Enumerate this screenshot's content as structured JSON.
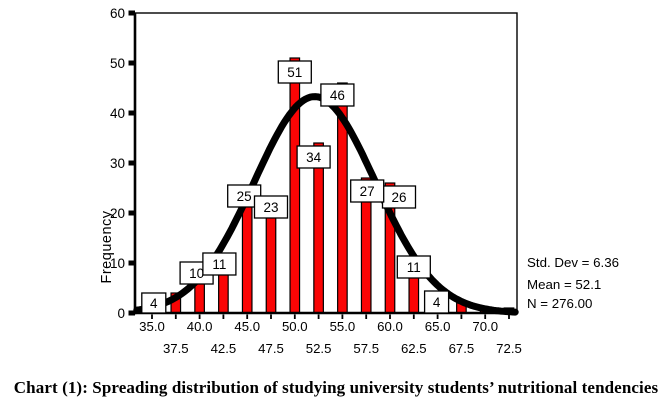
{
  "page": {
    "background": "#ffffff"
  },
  "chart_data": {
    "type": "bar",
    "subtype": "histogram-with-normal-curve",
    "title": "",
    "xlabel": "",
    "ylabel": "Frequency",
    "ylim": [
      0,
      60
    ],
    "y_ticks": [
      0,
      10,
      20,
      30,
      40,
      50,
      60
    ],
    "x_ticks_all": [
      35.0,
      37.5,
      40.0,
      42.5,
      45.0,
      47.5,
      50.0,
      52.5,
      55.0,
      57.5,
      60.0,
      62.5,
      65.0,
      67.5,
      70.0,
      72.5
    ],
    "x_tick_row1": [
      "35.0",
      "40.0",
      "45.0",
      "50.0",
      "55.0",
      "60.0",
      "65.0",
      "70.0"
    ],
    "x_tick_row1_values": [
      35.0,
      40.0,
      45.0,
      50.0,
      55.0,
      60.0,
      65.0,
      70.0
    ],
    "x_tick_row2": [
      "37.5",
      "42.5",
      "47.5",
      "52.5",
      "57.5",
      "62.5",
      "67.5",
      "72.5"
    ],
    "x_tick_row2_values": [
      37.5,
      42.5,
      47.5,
      52.5,
      57.5,
      62.5,
      67.5,
      72.5
    ],
    "bin_width": 2.5,
    "bars": [
      {
        "center": 37.5,
        "count": 4,
        "label": "4"
      },
      {
        "center": 40.0,
        "count": 10,
        "label": "10"
      },
      {
        "center": 42.5,
        "count": 11,
        "label": "11"
      },
      {
        "center": 45.0,
        "count": 25,
        "label": "25"
      },
      {
        "center": 47.5,
        "count": 23,
        "label": "23"
      },
      {
        "center": 50.0,
        "count": 51,
        "label": "51"
      },
      {
        "center": 52.5,
        "count": 34,
        "label": "34"
      },
      {
        "center": 55.0,
        "count": 46,
        "label": "46"
      },
      {
        "center": 57.5,
        "count": 27,
        "label": "27"
      },
      {
        "center": 60.0,
        "count": 26,
        "label": "26"
      },
      {
        "center": 62.5,
        "count": 11,
        "label": "11"
      },
      {
        "center": 65.0,
        "count": 4,
        "label": "4"
      },
      {
        "center": 67.5,
        "count": 2,
        "label": null
      },
      {
        "center": 70.0,
        "count": 1,
        "label": null
      },
      {
        "center": 72.5,
        "count": 1,
        "label": null
      }
    ],
    "normal_curve": {
      "mean": 52.1,
      "std_dev": 6.36,
      "n": 276
    },
    "stats": {
      "std_dev": "Std. Dev = 6.36",
      "mean": "Mean = 52.1",
      "n": "N = 276.00"
    },
    "colors": {
      "bar_fill": "#fa0505",
      "bar_border": "#000000",
      "curve": "#000000",
      "frame": "#000000",
      "label_box_fill": "#ffffff",
      "label_box_border": "#000000",
      "text": "#000000"
    },
    "legend_position": "none",
    "grid": false
  },
  "caption": "Chart (1): Spreading distribution of studying university students’ nutritional tendencies"
}
